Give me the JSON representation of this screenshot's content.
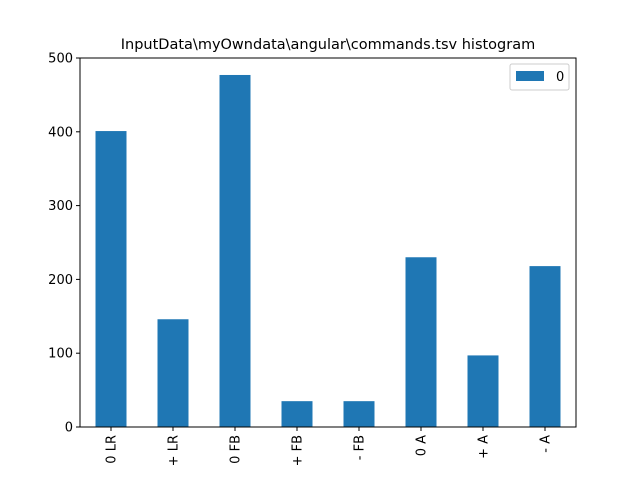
{
  "chart_data": {
    "type": "bar",
    "title": "InputData\\myOwndata\\angular\\commands.tsv histogram",
    "xlabel": "",
    "ylabel": "",
    "categories": [
      "0 LR",
      "+ LR",
      "0 FB",
      "+ FB",
      "- FB",
      "0 A",
      "+ A",
      "- A"
    ],
    "series": [
      {
        "name": "0",
        "values": [
          401,
          146,
          477,
          35,
          35,
          230,
          97,
          218
        ]
      }
    ],
    "ylim": [
      0,
      500
    ],
    "yticks": [
      0,
      100,
      200,
      300,
      400,
      500
    ],
    "legend": "upper-right",
    "grid": false,
    "bar_color": "#1f77b4"
  }
}
